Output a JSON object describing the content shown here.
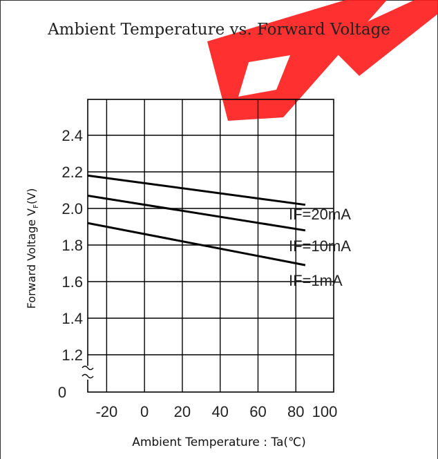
{
  "watermark": {
    "color": "#ff1a1a"
  },
  "chart_data": {
    "type": "line",
    "title": "Ambient Temperature vs. Forward Voltage",
    "xlabel": "Ambient Temperature : Ta(℃)",
    "ylabel": {
      "prefix": "Forward Voltage V",
      "sub": "F",
      "suffix": "(V)"
    },
    "xlim": [
      -30,
      100
    ],
    "ylim": [
      0,
      2.6
    ],
    "y_axis_break": true,
    "x_ticks": [
      "-20",
      "0",
      "20",
      "40",
      "60",
      "80",
      "100"
    ],
    "y_ticks": [
      "0",
      "1.2",
      "1.4",
      "1.6",
      "1.8",
      "2.0",
      "2.2",
      "2.4"
    ],
    "grid": true,
    "series": [
      {
        "name": "IF=20mA",
        "x": [
          -30,
          85
        ],
        "y": [
          2.18,
          2.02
        ]
      },
      {
        "name": "IF=10mA",
        "x": [
          -30,
          85
        ],
        "y": [
          2.07,
          1.88
        ]
      },
      {
        "name": "IF=1mA",
        "x": [
          -30,
          85
        ],
        "y": [
          1.92,
          1.69
        ]
      }
    ]
  }
}
